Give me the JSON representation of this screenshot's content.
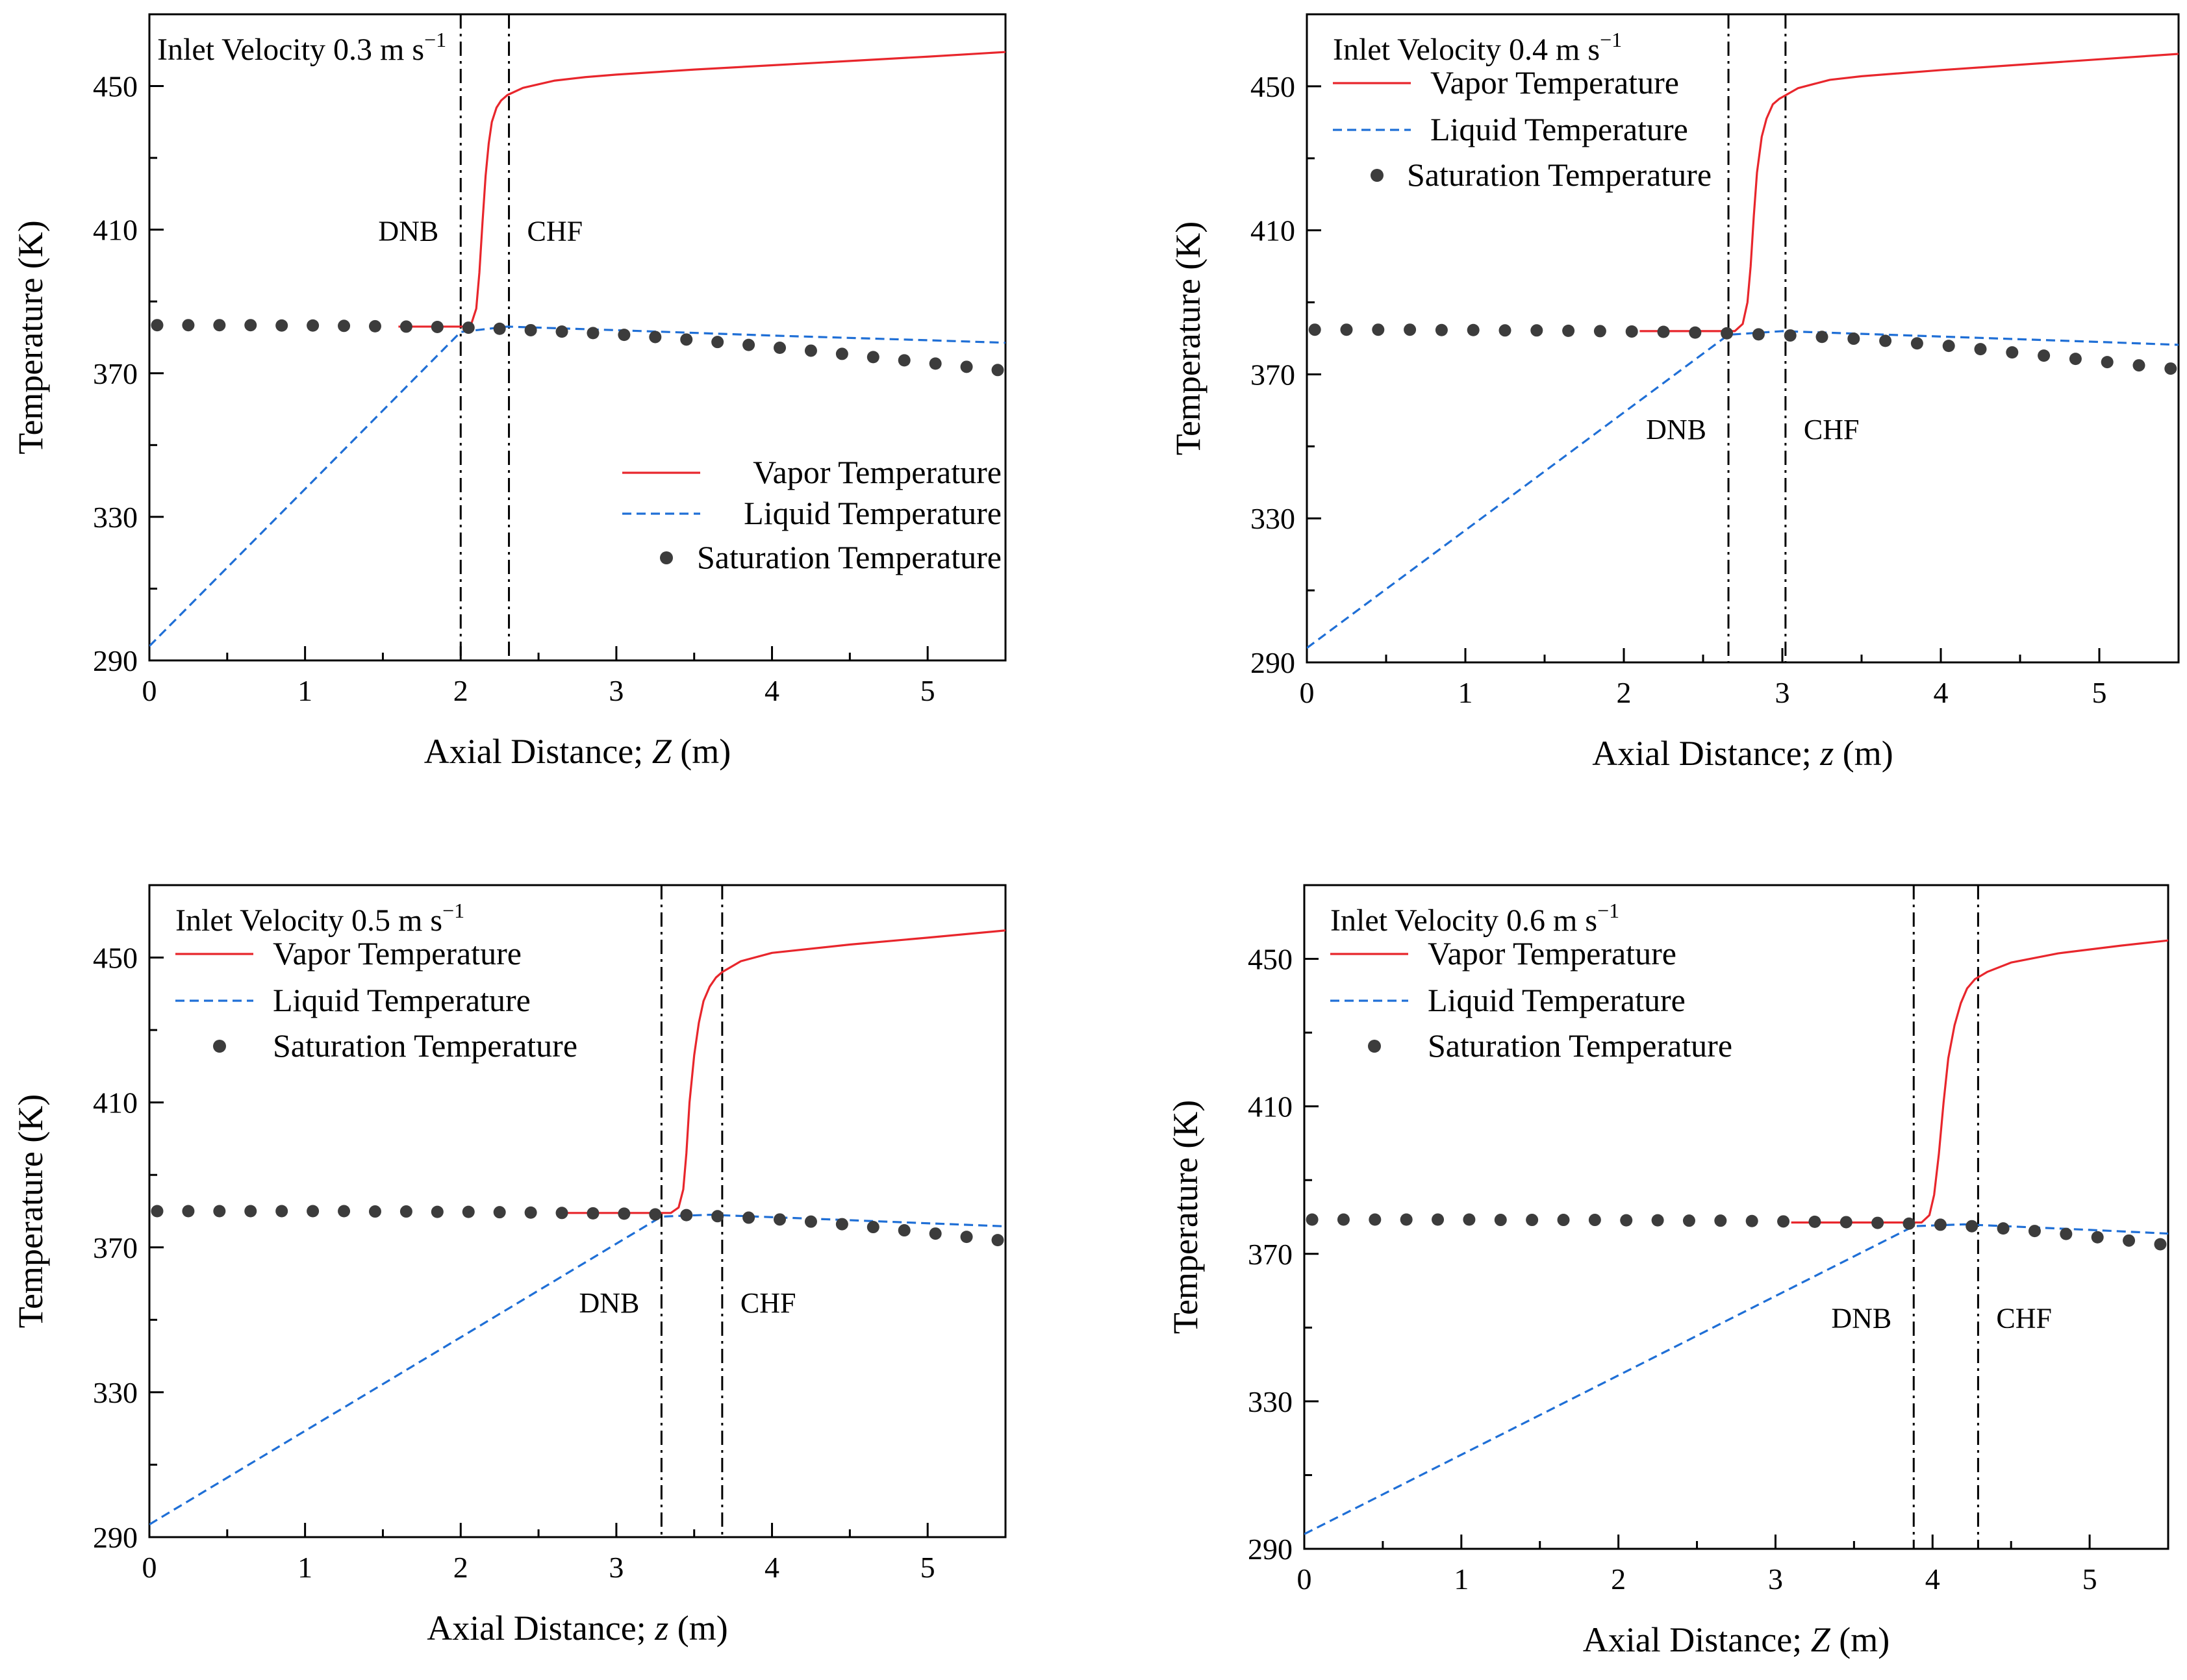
{
  "figure": {
    "name": "Temperature profiles along the axial distance for four inlet velocities"
  },
  "chart_data": [
    {
      "type": "line",
      "panel": "top-left",
      "title": "Inlet Velocity 0.3 m s",
      "title_sup": "−1",
      "xlabel_pre": "Axial Distance; ",
      "xlabel_var": "Z",
      "xlabel_post": " (m)",
      "ylabel": "Temperature (K)",
      "xlim": [
        0,
        5.5
      ],
      "ylim": [
        290,
        470
      ],
      "xticks": [
        0,
        1,
        2,
        3,
        4,
        5
      ],
      "yticks": [
        290,
        330,
        370,
        410,
        450
      ],
      "legend": [
        "Vapor Temperature",
        "Liquid Temperature",
        "Saturation Temperature"
      ],
      "legend_position": "bottom-right",
      "markers": [
        {
          "label": "DNB",
          "x": 2.0
        },
        {
          "label": "CHF",
          "x": 2.31
        }
      ],
      "marker_label_y": 407,
      "series": [
        {
          "name": "Vapor Temperature",
          "style": "solid",
          "color": "#e8262c",
          "x": [
            1.6,
            2.02,
            2.07,
            2.1,
            2.12,
            2.14,
            2.16,
            2.18,
            2.2,
            2.23,
            2.26,
            2.3,
            2.4,
            2.6,
            2.8,
            3.0,
            3.5,
            4.0,
            4.5,
            5.0,
            5.5
          ],
          "y": [
            383,
            383,
            384,
            388,
            398,
            412,
            425,
            434,
            440,
            444,
            446,
            447.5,
            449.5,
            451.5,
            452.5,
            453.2,
            454.6,
            455.8,
            457,
            458.2,
            459.5
          ]
        },
        {
          "name": "Liquid Temperature",
          "style": "dashed",
          "color": "#1f6fd6",
          "x": [
            0,
            2.0,
            2.3,
            3.0,
            4.0,
            5.0,
            5.5
          ],
          "y": [
            294,
            381.5,
            383,
            382,
            380.5,
            379.2,
            378.5
          ]
        },
        {
          "name": "Saturation Temperature",
          "style": "dots",
          "color": "#3c3c3c",
          "x": [
            0.05,
            0.25,
            0.45,
            0.65,
            0.85,
            1.05,
            1.25,
            1.45,
            1.65,
            1.85,
            2.05,
            2.25,
            2.45,
            2.65,
            2.85,
            3.05,
            3.25,
            3.45,
            3.65,
            3.85,
            4.05,
            4.25,
            4.45,
            4.65,
            4.85,
            5.05,
            5.25,
            5.45
          ],
          "y": [
            383.4,
            383.4,
            383.4,
            383.4,
            383.3,
            383.3,
            383.2,
            383.1,
            383,
            382.9,
            382.7,
            382.4,
            382,
            381.6,
            381.2,
            380.7,
            380.1,
            379.4,
            378.7,
            377.9,
            377.1,
            376.3,
            375.4,
            374.5,
            373.6,
            372.7,
            371.8,
            370.9
          ]
        }
      ]
    },
    {
      "type": "line",
      "panel": "top-right",
      "title": "Inlet Velocity 0.4 m s",
      "title_sup": "−1",
      "xlabel_pre": "Axial Distance; ",
      "xlabel_var": "z",
      "xlabel_post": " (m)",
      "ylabel": "Temperature (K)",
      "xlim": [
        0,
        5.5
      ],
      "ylim": [
        290,
        470
      ],
      "xticks": [
        0,
        1,
        2,
        3,
        4,
        5
      ],
      "yticks": [
        290,
        330,
        370,
        410,
        450
      ],
      "legend": [
        "Vapor Temperature",
        "Liquid Temperature",
        "Saturation Temperature"
      ],
      "legend_position": "top-left",
      "markers": [
        {
          "label": "DNB",
          "x": 2.66
        },
        {
          "label": "CHF",
          "x": 3.02
        }
      ],
      "marker_label_y": 352,
      "series": [
        {
          "name": "Vapor Temperature",
          "style": "solid",
          "color": "#e8262c",
          "x": [
            2.1,
            2.7,
            2.75,
            2.78,
            2.8,
            2.82,
            2.84,
            2.87,
            2.9,
            2.94,
            2.98,
            3.02,
            3.1,
            3.3,
            3.5,
            4.0,
            4.5,
            5.0,
            5.5
          ],
          "y": [
            382,
            382,
            384,
            390,
            400,
            414,
            426,
            436,
            441,
            445,
            446.5,
            447.5,
            449.5,
            451.8,
            452.8,
            454.5,
            456,
            457.5,
            459
          ]
        },
        {
          "name": "Liquid Temperature",
          "style": "dashed",
          "color": "#1f6fd6",
          "x": [
            0,
            2.66,
            3.0,
            4.0,
            5.0,
            5.5
          ],
          "y": [
            294,
            381,
            382,
            380.5,
            379,
            378.2
          ]
        },
        {
          "name": "Saturation Temperature",
          "style": "dots",
          "color": "#3c3c3c",
          "x": [
            0.05,
            0.25,
            0.45,
            0.65,
            0.85,
            1.05,
            1.25,
            1.45,
            1.65,
            1.85,
            2.05,
            2.25,
            2.45,
            2.65,
            2.85,
            3.05,
            3.25,
            3.45,
            3.65,
            3.85,
            4.05,
            4.25,
            4.45,
            4.65,
            4.85,
            5.05,
            5.25,
            5.45
          ],
          "y": [
            382.4,
            382.4,
            382.4,
            382.4,
            382.3,
            382.3,
            382.2,
            382.2,
            382.1,
            382,
            381.9,
            381.8,
            381.6,
            381.4,
            381.1,
            380.8,
            380.4,
            379.9,
            379.3,
            378.6,
            377.9,
            377,
            376.1,
            375.2,
            374.3,
            373.4,
            372.5,
            371.6
          ]
        }
      ]
    },
    {
      "type": "line",
      "panel": "bottom-left",
      "title": "Inlet Velocity 0.5 m s",
      "title_sup": "−1",
      "xlabel_pre": "Axial Distance; ",
      "xlabel_var": "z",
      "xlabel_post": " (m)",
      "ylabel": "Temperature (K)",
      "xlim": [
        0,
        5.5
      ],
      "ylim": [
        290,
        470
      ],
      "xticks": [
        0,
        1,
        2,
        3,
        4,
        5
      ],
      "yticks": [
        290,
        330,
        370,
        410,
        450
      ],
      "legend": [
        "Vapor Temperature",
        "Liquid Temperature",
        "Saturation Temperature"
      ],
      "legend_position": "top-left",
      "markers": [
        {
          "label": "DNB",
          "x": 3.29
        },
        {
          "label": "CHF",
          "x": 3.68
        }
      ],
      "marker_label_y": 352,
      "series": [
        {
          "name": "Vapor Temperature",
          "style": "solid",
          "color": "#e8262c",
          "x": [
            2.62,
            3.35,
            3.4,
            3.43,
            3.45,
            3.47,
            3.5,
            3.53,
            3.56,
            3.6,
            3.64,
            3.68,
            3.8,
            4.0,
            4.5,
            5.0,
            5.5
          ],
          "y": [
            379.5,
            379.5,
            381,
            386,
            396,
            410,
            423,
            432,
            438,
            442,
            444.5,
            446,
            449,
            451.3,
            453.6,
            455.5,
            457.5
          ]
        },
        {
          "name": "Liquid Temperature",
          "style": "dashed",
          "color": "#1f6fd6",
          "x": [
            0,
            3.29,
            3.6,
            4.5,
            5.5
          ],
          "y": [
            293.5,
            378.5,
            379,
            377.5,
            375.8
          ]
        },
        {
          "name": "Saturation Temperature",
          "style": "dots",
          "color": "#3c3c3c",
          "x": [
            0.05,
            0.25,
            0.45,
            0.65,
            0.85,
            1.05,
            1.25,
            1.45,
            1.65,
            1.85,
            2.05,
            2.25,
            2.45,
            2.65,
            2.85,
            3.05,
            3.25,
            3.45,
            3.65,
            3.85,
            4.05,
            4.25,
            4.45,
            4.65,
            4.85,
            5.05,
            5.25,
            5.45
          ],
          "y": [
            380,
            380,
            380,
            380,
            380,
            380,
            380,
            379.9,
            379.9,
            379.8,
            379.8,
            379.7,
            379.6,
            379.5,
            379.4,
            379.3,
            379.1,
            378.9,
            378.6,
            378.2,
            377.7,
            377.1,
            376.4,
            375.6,
            374.7,
            373.8,
            372.9,
            372
          ]
        }
      ]
    },
    {
      "type": "line",
      "panel": "bottom-right",
      "title": "Inlet Velocity 0.6 m s",
      "title_sup": "−1",
      "xlabel_pre": "Axial Distance; ",
      "xlabel_var": "Z",
      "xlabel_post": " (m)",
      "ylabel": "Temperature (K)",
      "xlim": [
        0,
        5.5
      ],
      "ylim": [
        290,
        470
      ],
      "xticks": [
        0,
        1,
        2,
        3,
        4,
        5
      ],
      "yticks": [
        290,
        330,
        370,
        410,
        450
      ],
      "legend": [
        "Vapor Temperature",
        "Liquid Temperature",
        "Saturation Temperature"
      ],
      "legend_position": "top-left",
      "markers": [
        {
          "label": "DNB",
          "x": 3.88
        },
        {
          "label": "CHF",
          "x": 4.29
        }
      ],
      "marker_label_y": 350,
      "series": [
        {
          "name": "Vapor Temperature",
          "style": "solid",
          "color": "#e8262c",
          "x": [
            3.1,
            3.93,
            3.98,
            4.01,
            4.04,
            4.07,
            4.1,
            4.14,
            4.18,
            4.22,
            4.27,
            4.35,
            4.5,
            4.8,
            5.2,
            5.5
          ],
          "y": [
            378.5,
            378.5,
            380.5,
            386,
            397,
            411,
            423,
            432,
            438,
            442,
            444.5,
            446.5,
            449,
            451.5,
            453.6,
            455
          ]
        },
        {
          "name": "Liquid Temperature",
          "style": "dashed",
          "color": "#1f6fd6",
          "x": [
            0,
            3.88,
            4.2,
            5.0,
            5.5
          ],
          "y": [
            294,
            377.5,
            378,
            376.5,
            375.5
          ]
        },
        {
          "name": "Saturation Temperature",
          "style": "dots",
          "color": "#3c3c3c",
          "x": [
            0.05,
            0.25,
            0.45,
            0.65,
            0.85,
            1.05,
            1.25,
            1.45,
            1.65,
            1.85,
            2.05,
            2.25,
            2.45,
            2.65,
            2.85,
            3.05,
            3.25,
            3.45,
            3.65,
            3.85,
            4.05,
            4.25,
            4.45,
            4.65,
            4.85,
            5.05,
            5.25,
            5.45
          ],
          "y": [
            379.3,
            379.3,
            379.3,
            379.3,
            379.3,
            379.3,
            379.2,
            379.2,
            379.2,
            379.2,
            379.1,
            379.1,
            379,
            379,
            378.9,
            378.8,
            378.7,
            378.6,
            378.4,
            378.2,
            377.9,
            377.5,
            376.9,
            376.2,
            375.4,
            374.5,
            373.6,
            372.6
          ]
        }
      ]
    }
  ]
}
